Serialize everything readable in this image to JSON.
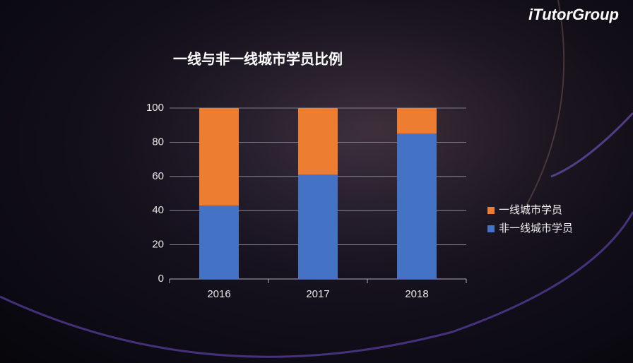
{
  "logo": "iTutorGroup",
  "chart_data": {
    "type": "stacked_bar",
    "title": "一线与非一线城市学员比例",
    "categories": [
      "2016",
      "2017",
      "2018"
    ],
    "series": [
      {
        "name": "非一线城市学员",
        "color": "#4472c4",
        "values": [
          43,
          61,
          85
        ]
      },
      {
        "name": "一线城市学员",
        "color": "#ed7d31",
        "values": [
          57,
          39,
          15
        ]
      }
    ],
    "ylim": [
      0,
      100
    ],
    "yticks": [
      0,
      20,
      40,
      60,
      80,
      100
    ],
    "grid": true,
    "legend": "right"
  }
}
